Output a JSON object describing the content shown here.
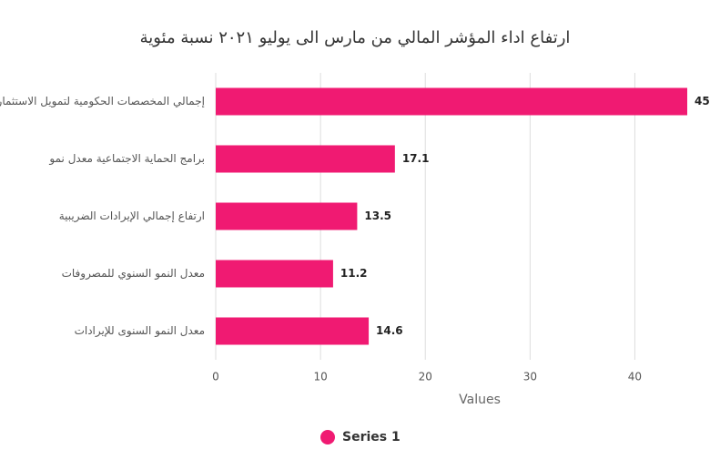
{
  "chart_data": {
    "type": "bar",
    "orientation": "horizontal",
    "title": "ارتفاع اداء المؤشر المالي من مارس الى يوليو ٢٠٢١ نسبة مئوية",
    "categories": [
      "إجمالي المخصصات الحكومية لتمويل الاستثمارات",
      "برامج الحماية الاجتماعية معدل نمو",
      "ارتفاع إجمالي الإيرادات الضريبية",
      "معدل النمو السنوي للمصروفات",
      "معدل النمو السنوى للإيرادات"
    ],
    "series": [
      {
        "name": "Series 1",
        "color": "#f01a72",
        "values": [
          45,
          17.1,
          13.5,
          11.2,
          14.6
        ]
      }
    ],
    "xlabel": "Values",
    "xlim": [
      0,
      45
    ],
    "xticks": [
      0,
      10,
      20,
      30,
      40
    ],
    "grid": true
  }
}
